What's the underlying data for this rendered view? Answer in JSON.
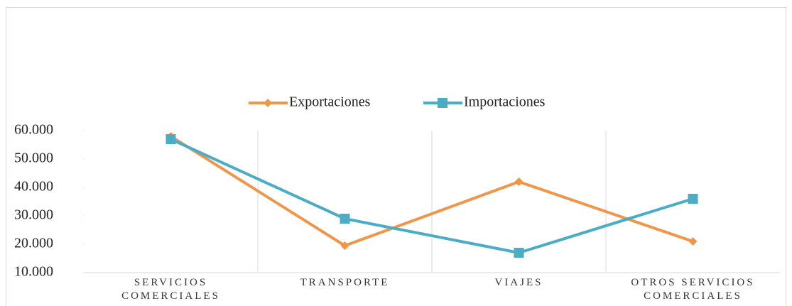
{
  "chart_data": {
    "type": "line",
    "categories": [
      "SERVICIOS COMERCIALES",
      "TRANSPORTE",
      "VIAJES",
      "OTROS SERVICIOS COMERCIALES"
    ],
    "series": [
      {
        "name": "Exportaciones",
        "color": "#f0964a",
        "marker": "diamond",
        "values": [
          58000,
          19500,
          42000,
          21000
        ]
      },
      {
        "name": "Importaciones",
        "color": "#4bacc6",
        "marker": "square",
        "values": [
          57000,
          29000,
          17000,
          36000
        ]
      }
    ],
    "ylim": [
      10000,
      60000
    ],
    "yticks": [
      {
        "value": 10000,
        "label": "10.000"
      },
      {
        "value": 20000,
        "label": "20.000"
      },
      {
        "value": 30000,
        "label": "30.000"
      },
      {
        "value": 40000,
        "label": "40.000"
      },
      {
        "value": 50000,
        "label": "50.000"
      },
      {
        "value": 60000,
        "label": "60.000"
      }
    ],
    "legend": "top"
  }
}
